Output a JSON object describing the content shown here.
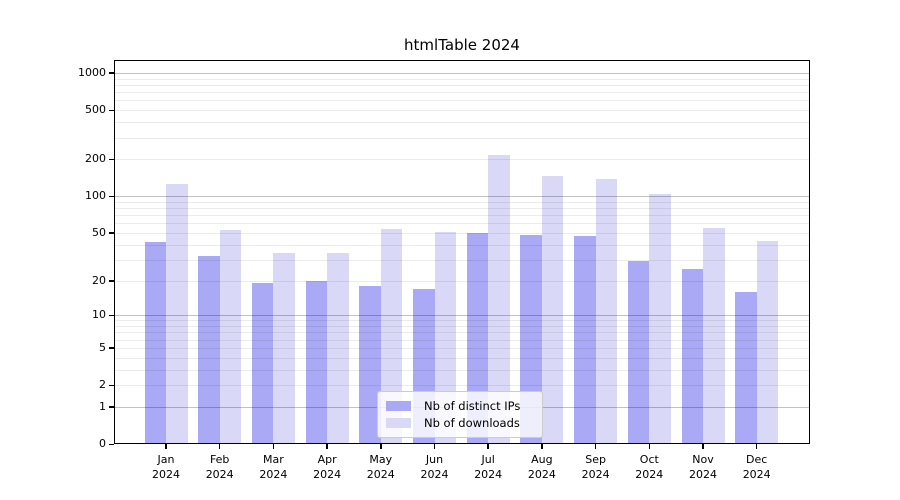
{
  "title": "htmlTable 2024",
  "chart_data": {
    "type": "bar",
    "title": "htmlTable 2024",
    "categories": [
      "Jan 2024",
      "Feb 2024",
      "Mar 2024",
      "Apr 2024",
      "May 2024",
      "Jun 2024",
      "Jul 2024",
      "Aug 2024",
      "Sep 2024",
      "Oct 2024",
      "Nov 2024",
      "Dec 2024"
    ],
    "series": [
      {
        "name": "Nb of distinct IPs",
        "color": "#a9a9f6",
        "values": [
          42,
          32,
          19,
          20,
          18,
          17,
          50,
          48,
          47,
          29,
          25,
          16
        ]
      },
      {
        "name": "Nb of downloads",
        "color": "#d9d9f7",
        "values": [
          125,
          53,
          34,
          34,
          54,
          51,
          215,
          146,
          139,
          105,
          55,
          43
        ]
      }
    ],
    "xlabel": "",
    "ylabel": "",
    "yscale": "log(1+y)",
    "yticks": [
      0,
      1,
      2,
      5,
      10,
      20,
      50,
      100,
      200,
      500,
      1000
    ],
    "ylim": [
      0,
      1270
    ],
    "grid": "major at 1,10,100,1000; minor at 2-9 per decade",
    "legend_position": "lower center",
    "colors": {
      "bar_dark": "#a9a9f6",
      "bar_light": "#d9d9f7",
      "grid_major": "#c6c6c6",
      "grid_minor": "#ebebeb",
      "axis": "#000000",
      "background": "#ffffff"
    }
  },
  "legend": {
    "items": [
      {
        "label": "Nb of distinct IPs"
      },
      {
        "label": "Nb of downloads"
      }
    ]
  }
}
